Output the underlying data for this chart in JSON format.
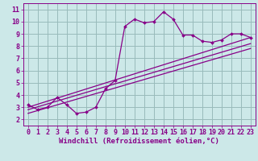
{
  "bg_color": "#cce8e8",
  "line_color": "#880088",
  "grid_color": "#99bbbb",
  "xlabel": "Windchill (Refroidissement éolien,°C)",
  "xlabel_fontsize": 6.5,
  "tick_fontsize": 6.0,
  "xlim": [
    -0.5,
    23.5
  ],
  "ylim": [
    1.5,
    11.5
  ],
  "xticks": [
    0,
    1,
    2,
    3,
    4,
    5,
    6,
    7,
    8,
    9,
    10,
    11,
    12,
    13,
    14,
    15,
    16,
    17,
    18,
    19,
    20,
    21,
    22,
    23
  ],
  "yticks": [
    2,
    3,
    4,
    5,
    6,
    7,
    8,
    9,
    10,
    11
  ],
  "curve1_x": [
    0,
    1,
    2,
    3,
    4,
    5,
    6,
    7,
    8,
    9,
    10,
    11,
    12,
    13,
    14,
    15,
    16,
    17,
    18,
    19,
    20,
    21,
    22,
    23
  ],
  "curve1_y": [
    3.2,
    2.8,
    3.0,
    3.8,
    3.2,
    2.5,
    2.6,
    3.0,
    4.5,
    5.2,
    9.6,
    10.2,
    9.9,
    10.0,
    10.8,
    10.2,
    8.9,
    8.9,
    8.4,
    8.3,
    8.5,
    9.0,
    9.0,
    8.7
  ],
  "line2_x": [
    0,
    23
  ],
  "line2_y": [
    3.0,
    8.7
  ],
  "line3_x": [
    0,
    23
  ],
  "line3_y": [
    2.8,
    8.2
  ],
  "line4_x": [
    0,
    23
  ],
  "line4_y": [
    2.5,
    7.8
  ],
  "xlabel_bg": "#ddeeff",
  "bottom_band_color": "#9966aa"
}
